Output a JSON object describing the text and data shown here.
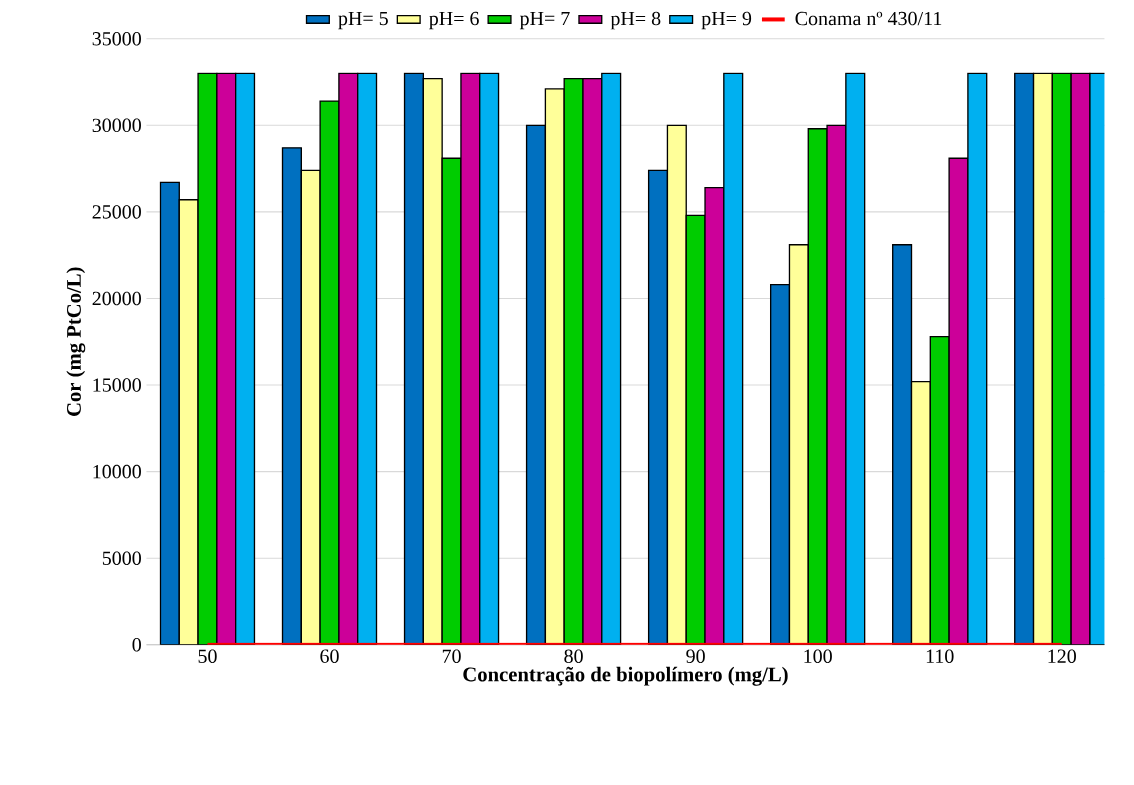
{
  "chart_data": {
    "type": "bar",
    "xlabel": "Concentração de biopolímero (mg/L)",
    "ylabel": "Cor (mg PtCo/L)",
    "categories": [
      "50",
      "60",
      "70",
      "80",
      "90",
      "100",
      "110",
      "120"
    ],
    "series": [
      {
        "name": "pH= 5",
        "color": "#0070c0",
        "values": [
          26700,
          28700,
          33000,
          30000,
          27400,
          20800,
          23100,
          33000
        ]
      },
      {
        "name": "pH= 6",
        "color": "#ffff99",
        "values": [
          25700,
          27400,
          32700,
          32100,
          30000,
          23100,
          15200,
          33000
        ]
      },
      {
        "name": "pH= 7",
        "color": "#00cc00",
        "values": [
          33000,
          31400,
          28100,
          32700,
          24800,
          29800,
          17800,
          33000
        ]
      },
      {
        "name": "pH= 8",
        "color": "#cc0099",
        "values": [
          33000,
          33000,
          33000,
          32700,
          26400,
          30000,
          28100,
          33000
        ]
      },
      {
        "name": "pH= 9",
        "color": "#00b0f0",
        "values": [
          33000,
          33000,
          33000,
          33000,
          33000,
          33000,
          33000,
          33000
        ]
      },
      {
        "name": "Conama nº 430/11",
        "type": "line",
        "color": "#ff0000",
        "values": [
          0,
          0,
          0,
          0,
          0,
          0,
          0,
          0
        ]
      }
    ],
    "ylim": [
      0,
      35000
    ],
    "yticks": [
      0,
      5000,
      10000,
      15000,
      20000,
      25000,
      30000,
      35000
    ],
    "grid": "y",
    "legend": "top"
  }
}
